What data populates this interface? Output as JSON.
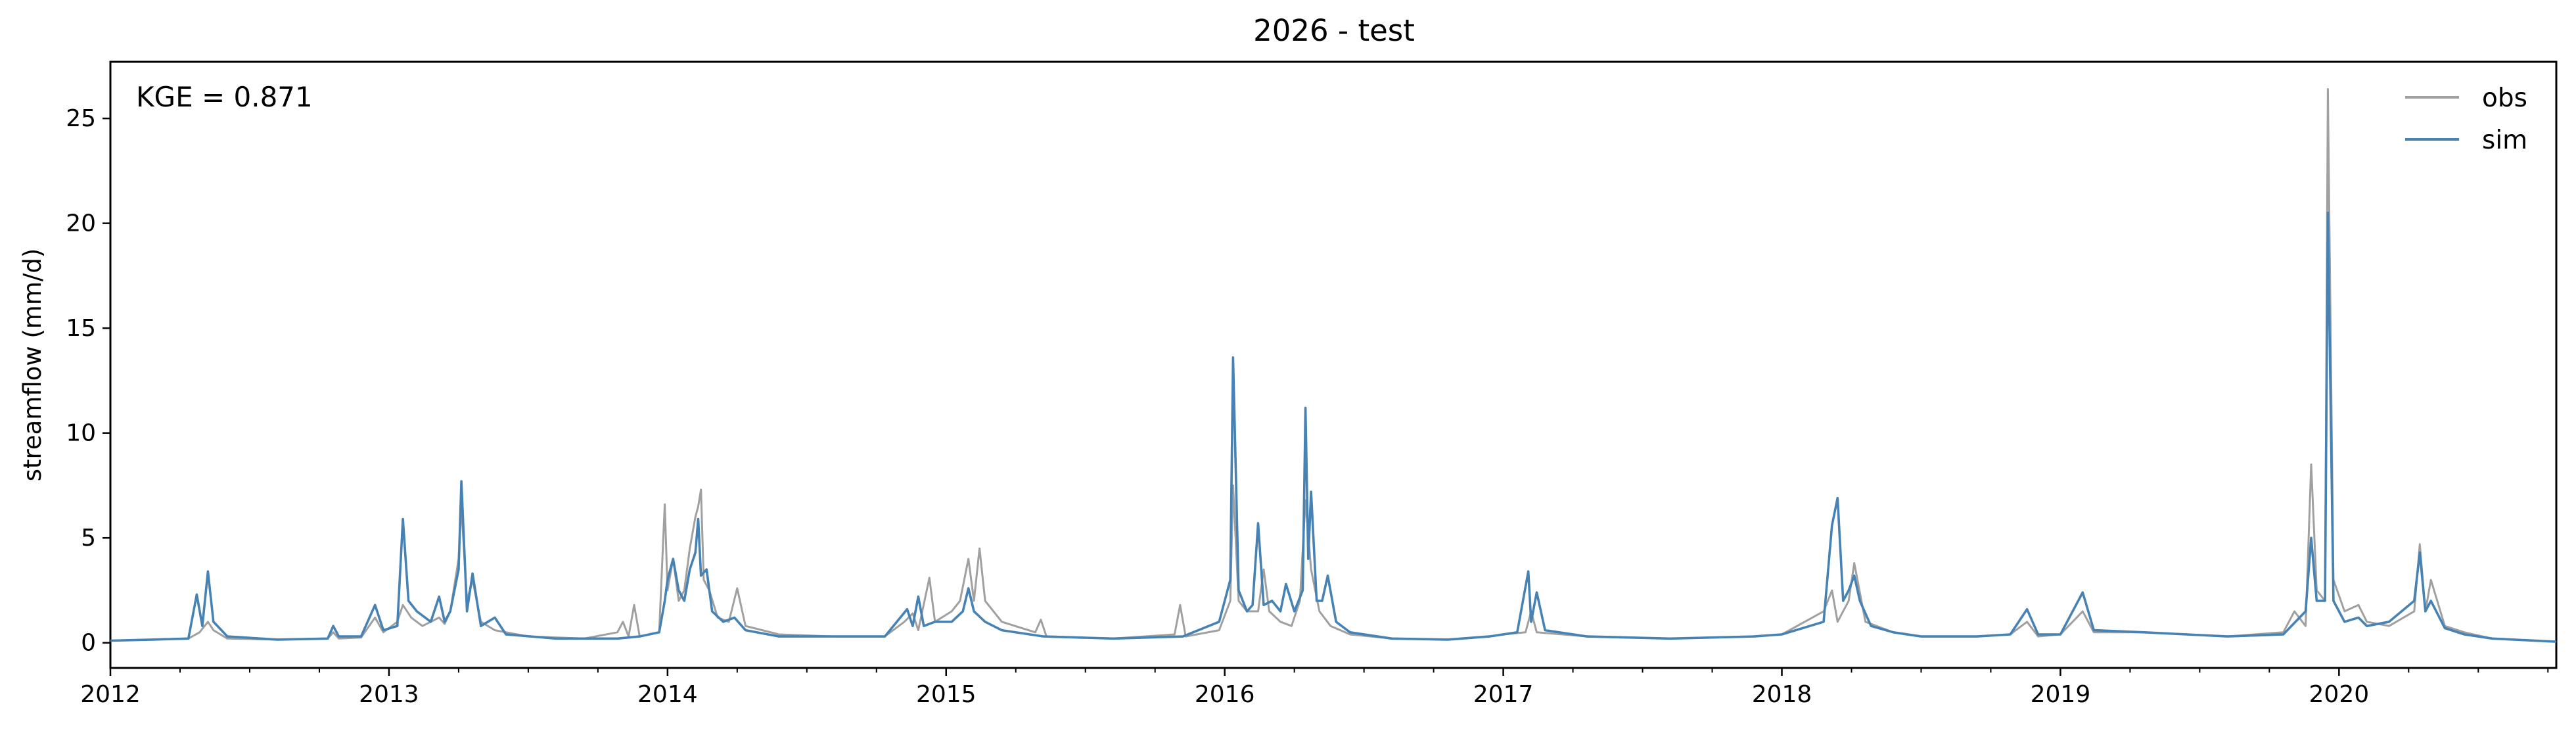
{
  "chart_data": {
    "type": "line",
    "title": "2026 - test",
    "xlabel": "",
    "ylabel": "streamflow (mm/d)",
    "annotation": "KGE = 0.871",
    "xlim": [
      2012.0,
      2020.78
    ],
    "ylim": [
      -1.2,
      27.7
    ],
    "x_ticks": [
      2012,
      2013,
      2014,
      2015,
      2016,
      2017,
      2018,
      2019,
      2020
    ],
    "x_tick_labels": [
      "2012",
      "2013",
      "2014",
      "2015",
      "2016",
      "2017",
      "2018",
      "2019",
      "2020"
    ],
    "y_ticks": [
      0,
      5,
      10,
      15,
      20,
      25
    ],
    "y_tick_labels": [
      "0",
      "5",
      "10",
      "15",
      "20",
      "25"
    ],
    "grid": false,
    "legend_position": "top-right",
    "colors": {
      "obs": "#a0a0a0",
      "sim": "#4682b4"
    },
    "series": [
      {
        "name": "obs",
        "color": "#a0a0a0",
        "points": [
          [
            2012.0,
            0.1
          ],
          [
            2012.15,
            0.15
          ],
          [
            2012.28,
            0.2
          ],
          [
            2012.32,
            0.5
          ],
          [
            2012.35,
            1.0
          ],
          [
            2012.37,
            0.6
          ],
          [
            2012.42,
            0.2
          ],
          [
            2012.6,
            0.15
          ],
          [
            2012.78,
            0.2
          ],
          [
            2012.8,
            0.5
          ],
          [
            2012.82,
            0.2
          ],
          [
            2012.9,
            0.25
          ],
          [
            2012.95,
            1.2
          ],
          [
            2012.98,
            0.5
          ],
          [
            2013.03,
            1.0
          ],
          [
            2013.05,
            1.8
          ],
          [
            2013.08,
            1.2
          ],
          [
            2013.12,
            0.8
          ],
          [
            2013.15,
            1.0
          ],
          [
            2013.18,
            1.2
          ],
          [
            2013.2,
            0.9
          ],
          [
            2013.22,
            1.5
          ],
          [
            2013.25,
            4.0
          ],
          [
            2013.26,
            6.5
          ],
          [
            2013.28,
            2.0
          ],
          [
            2013.3,
            3.0
          ],
          [
            2013.33,
            1.0
          ],
          [
            2013.38,
            0.6
          ],
          [
            2013.5,
            0.3
          ],
          [
            2013.7,
            0.2
          ],
          [
            2013.82,
            0.5
          ],
          [
            2013.84,
            1.0
          ],
          [
            2013.86,
            0.3
          ],
          [
            2013.88,
            1.8
          ],
          [
            2013.9,
            0.3
          ],
          [
            2013.97,
            0.5
          ],
          [
            2013.99,
            6.6
          ],
          [
            2014.0,
            2.5
          ],
          [
            2014.02,
            4.0
          ],
          [
            2014.04,
            2.0
          ],
          [
            2014.06,
            2.5
          ],
          [
            2014.08,
            4.5
          ],
          [
            2014.1,
            6.0
          ],
          [
            2014.11,
            6.5
          ],
          [
            2014.12,
            7.3
          ],
          [
            2014.13,
            3.0
          ],
          [
            2014.15,
            2.5
          ],
          [
            2014.18,
            1.2
          ],
          [
            2014.22,
            1.0
          ],
          [
            2014.25,
            2.6
          ],
          [
            2014.28,
            0.8
          ],
          [
            2014.4,
            0.4
          ],
          [
            2014.6,
            0.3
          ],
          [
            2014.78,
            0.3
          ],
          [
            2014.85,
            1.0
          ],
          [
            2014.88,
            1.4
          ],
          [
            2014.9,
            0.6
          ],
          [
            2014.94,
            3.1
          ],
          [
            2014.96,
            1.0
          ],
          [
            2015.02,
            1.5
          ],
          [
            2015.05,
            2.0
          ],
          [
            2015.08,
            4.0
          ],
          [
            2015.1,
            2.0
          ],
          [
            2015.12,
            4.5
          ],
          [
            2015.14,
            2.0
          ],
          [
            2015.2,
            1.0
          ],
          [
            2015.32,
            0.5
          ],
          [
            2015.34,
            1.1
          ],
          [
            2015.36,
            0.3
          ],
          [
            2015.6,
            0.2
          ],
          [
            2015.82,
            0.4
          ],
          [
            2015.84,
            1.8
          ],
          [
            2015.86,
            0.3
          ],
          [
            2015.98,
            0.6
          ],
          [
            2016.02,
            2.0
          ],
          [
            2016.03,
            7.5
          ],
          [
            2016.05,
            2.0
          ],
          [
            2016.08,
            1.5
          ],
          [
            2016.12,
            1.5
          ],
          [
            2016.14,
            3.5
          ],
          [
            2016.16,
            1.5
          ],
          [
            2016.2,
            1.0
          ],
          [
            2016.24,
            0.8
          ],
          [
            2016.27,
            2.0
          ],
          [
            2016.29,
            6.8
          ],
          [
            2016.31,
            3.5
          ],
          [
            2016.34,
            1.5
          ],
          [
            2016.38,
            0.8
          ],
          [
            2016.45,
            0.4
          ],
          [
            2016.6,
            0.2
          ],
          [
            2016.8,
            0.15
          ],
          [
            2016.95,
            0.3
          ],
          [
            2017.0,
            0.4
          ],
          [
            2017.08,
            0.5
          ],
          [
            2017.1,
            1.5
          ],
          [
            2017.12,
            0.5
          ],
          [
            2017.3,
            0.3
          ],
          [
            2017.6,
            0.2
          ],
          [
            2017.9,
            0.3
          ],
          [
            2018.0,
            0.4
          ],
          [
            2018.15,
            1.5
          ],
          [
            2018.18,
            2.5
          ],
          [
            2018.2,
            1.0
          ],
          [
            2018.24,
            2.0
          ],
          [
            2018.26,
            3.8
          ],
          [
            2018.3,
            1.0
          ],
          [
            2018.4,
            0.5
          ],
          [
            2018.5,
            0.3
          ],
          [
            2018.7,
            0.3
          ],
          [
            2018.82,
            0.4
          ],
          [
            2018.88,
            1.0
          ],
          [
            2018.92,
            0.3
          ],
          [
            2019.0,
            0.4
          ],
          [
            2019.08,
            1.5
          ],
          [
            2019.12,
            0.5
          ],
          [
            2019.3,
            0.5
          ],
          [
            2019.6,
            0.3
          ],
          [
            2019.8,
            0.5
          ],
          [
            2019.84,
            1.5
          ],
          [
            2019.88,
            0.8
          ],
          [
            2019.9,
            8.5
          ],
          [
            2019.92,
            2.5
          ],
          [
            2019.95,
            2.0
          ],
          [
            2019.96,
            26.4
          ],
          [
            2019.98,
            3.0
          ],
          [
            2020.02,
            1.5
          ],
          [
            2020.07,
            1.8
          ],
          [
            2020.1,
            1.0
          ],
          [
            2020.18,
            0.8
          ],
          [
            2020.27,
            1.5
          ],
          [
            2020.29,
            4.7
          ],
          [
            2020.31,
            1.5
          ],
          [
            2020.33,
            3.0
          ],
          [
            2020.38,
            0.8
          ],
          [
            2020.45,
            0.5
          ],
          [
            2020.55,
            0.2
          ],
          [
            2020.78,
            0.05
          ]
        ]
      },
      {
        "name": "sim",
        "color": "#4682b4",
        "points": [
          [
            2012.0,
            0.1
          ],
          [
            2012.15,
            0.15
          ],
          [
            2012.28,
            0.2
          ],
          [
            2012.31,
            2.3
          ],
          [
            2012.33,
            0.8
          ],
          [
            2012.35,
            3.4
          ],
          [
            2012.37,
            1.0
          ],
          [
            2012.42,
            0.3
          ],
          [
            2012.6,
            0.15
          ],
          [
            2012.78,
            0.2
          ],
          [
            2012.8,
            0.8
          ],
          [
            2012.82,
            0.3
          ],
          [
            2012.9,
            0.3
          ],
          [
            2012.95,
            1.8
          ],
          [
            2012.98,
            0.6
          ],
          [
            2013.03,
            0.8
          ],
          [
            2013.05,
            5.9
          ],
          [
            2013.07,
            2.0
          ],
          [
            2013.1,
            1.5
          ],
          [
            2013.15,
            1.0
          ],
          [
            2013.18,
            2.2
          ],
          [
            2013.2,
            1.0
          ],
          [
            2013.22,
            1.5
          ],
          [
            2013.25,
            3.5
          ],
          [
            2013.26,
            7.7
          ],
          [
            2013.28,
            1.5
          ],
          [
            2013.3,
            3.3
          ],
          [
            2013.33,
            0.8
          ],
          [
            2013.38,
            1.2
          ],
          [
            2013.42,
            0.4
          ],
          [
            2013.6,
            0.2
          ],
          [
            2013.82,
            0.2
          ],
          [
            2013.9,
            0.3
          ],
          [
            2013.97,
            0.5
          ],
          [
            2013.99,
            2.0
          ],
          [
            2014.0,
            3.0
          ],
          [
            2014.02,
            4.0
          ],
          [
            2014.04,
            2.5
          ],
          [
            2014.06,
            2.0
          ],
          [
            2014.08,
            3.5
          ],
          [
            2014.1,
            4.3
          ],
          [
            2014.11,
            5.9
          ],
          [
            2014.12,
            3.2
          ],
          [
            2014.14,
            3.5
          ],
          [
            2014.16,
            1.5
          ],
          [
            2014.2,
            1.0
          ],
          [
            2014.24,
            1.2
          ],
          [
            2014.28,
            0.6
          ],
          [
            2014.4,
            0.3
          ],
          [
            2014.6,
            0.3
          ],
          [
            2014.78,
            0.3
          ],
          [
            2014.86,
            1.6
          ],
          [
            2014.88,
            0.8
          ],
          [
            2014.9,
            2.2
          ],
          [
            2014.92,
            0.8
          ],
          [
            2014.96,
            1.0
          ],
          [
            2015.02,
            1.0
          ],
          [
            2015.06,
            1.5
          ],
          [
            2015.08,
            2.6
          ],
          [
            2015.1,
            1.5
          ],
          [
            2015.14,
            1.0
          ],
          [
            2015.2,
            0.6
          ],
          [
            2015.35,
            0.3
          ],
          [
            2015.6,
            0.2
          ],
          [
            2015.85,
            0.3
          ],
          [
            2015.98,
            1.0
          ],
          [
            2016.02,
            3.0
          ],
          [
            2016.03,
            13.6
          ],
          [
            2016.05,
            2.5
          ],
          [
            2016.08,
            1.5
          ],
          [
            2016.1,
            1.8
          ],
          [
            2016.12,
            5.7
          ],
          [
            2016.14,
            1.8
          ],
          [
            2016.17,
            2.0
          ],
          [
            2016.2,
            1.5
          ],
          [
            2016.22,
            2.8
          ],
          [
            2016.25,
            1.5
          ],
          [
            2016.28,
            2.5
          ],
          [
            2016.29,
            11.2
          ],
          [
            2016.3,
            4.0
          ],
          [
            2016.31,
            7.2
          ],
          [
            2016.33,
            2.0
          ],
          [
            2016.35,
            2.0
          ],
          [
            2016.37,
            3.2
          ],
          [
            2016.4,
            1.0
          ],
          [
            2016.45,
            0.5
          ],
          [
            2016.6,
            0.2
          ],
          [
            2016.8,
            0.15
          ],
          [
            2016.95,
            0.3
          ],
          [
            2017.05,
            0.5
          ],
          [
            2017.09,
            3.4
          ],
          [
            2017.1,
            1.0
          ],
          [
            2017.12,
            2.4
          ],
          [
            2017.15,
            0.6
          ],
          [
            2017.3,
            0.3
          ],
          [
            2017.6,
            0.2
          ],
          [
            2017.9,
            0.3
          ],
          [
            2018.0,
            0.4
          ],
          [
            2018.15,
            1.0
          ],
          [
            2018.18,
            5.6
          ],
          [
            2018.2,
            6.9
          ],
          [
            2018.22,
            2.0
          ],
          [
            2018.24,
            2.5
          ],
          [
            2018.26,
            3.2
          ],
          [
            2018.28,
            2.0
          ],
          [
            2018.32,
            0.8
          ],
          [
            2018.4,
            0.5
          ],
          [
            2018.5,
            0.3
          ],
          [
            2018.7,
            0.3
          ],
          [
            2018.82,
            0.4
          ],
          [
            2018.88,
            1.6
          ],
          [
            2018.92,
            0.4
          ],
          [
            2019.0,
            0.4
          ],
          [
            2019.08,
            2.4
          ],
          [
            2019.12,
            0.6
          ],
          [
            2019.3,
            0.5
          ],
          [
            2019.6,
            0.3
          ],
          [
            2019.8,
            0.4
          ],
          [
            2019.88,
            1.5
          ],
          [
            2019.9,
            5.0
          ],
          [
            2019.92,
            2.0
          ],
          [
            2019.95,
            2.0
          ],
          [
            2019.96,
            20.5
          ],
          [
            2019.98,
            2.0
          ],
          [
            2020.02,
            1.0
          ],
          [
            2020.07,
            1.2
          ],
          [
            2020.1,
            0.8
          ],
          [
            2020.18,
            1.0
          ],
          [
            2020.27,
            2.0
          ],
          [
            2020.29,
            4.3
          ],
          [
            2020.31,
            1.5
          ],
          [
            2020.33,
            2.0
          ],
          [
            2020.38,
            0.7
          ],
          [
            2020.45,
            0.4
          ],
          [
            2020.55,
            0.2
          ],
          [
            2020.78,
            0.05
          ]
        ]
      }
    ]
  }
}
